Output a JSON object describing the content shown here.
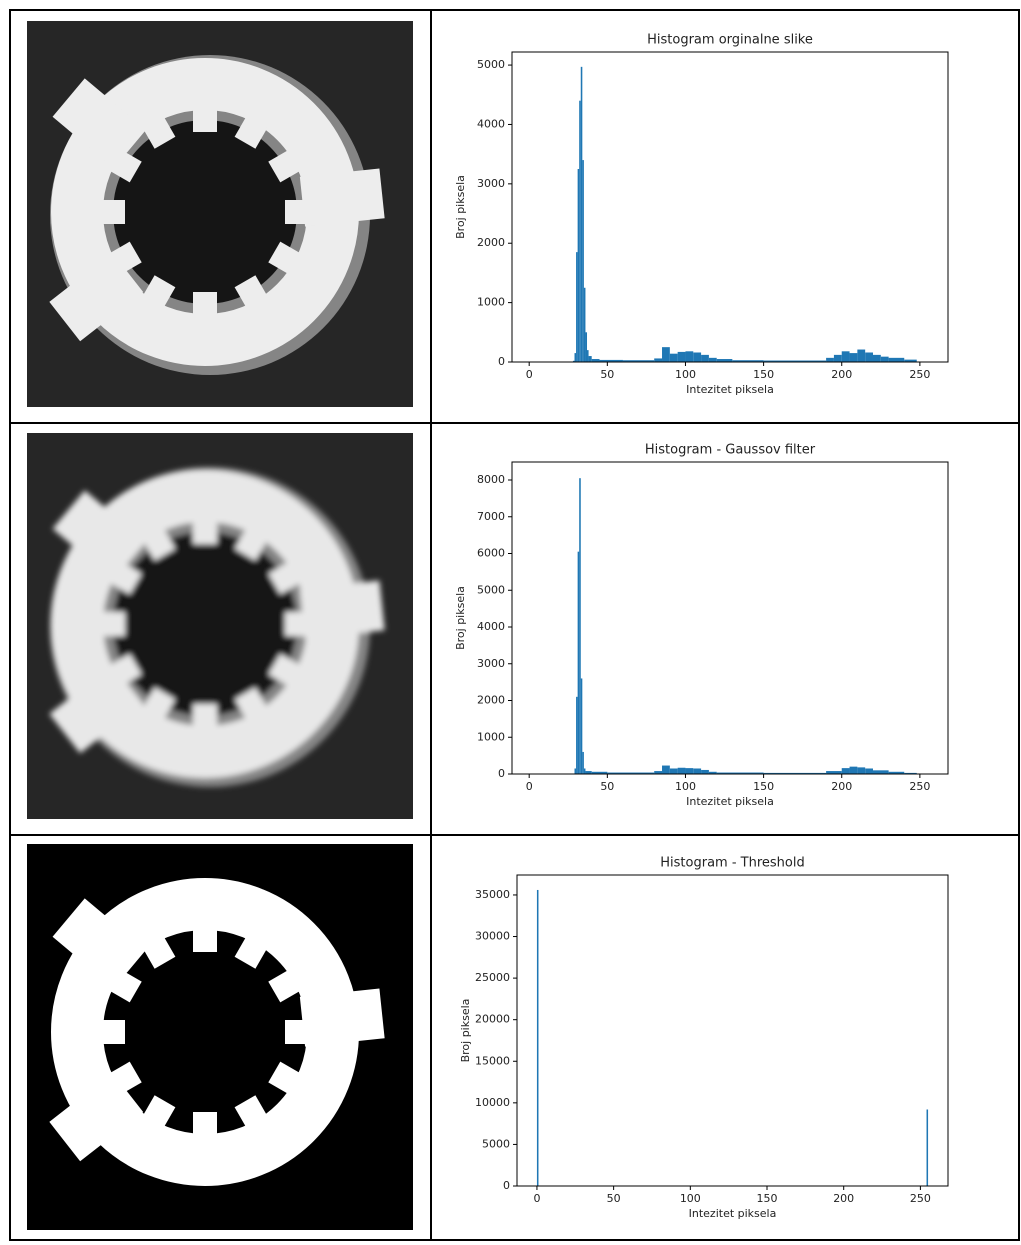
{
  "chart_data": [
    {
      "type": "histogram",
      "title": "Histogram orginalne slike",
      "xlabel": "Intezitet piksela",
      "ylabel": "Broj piksela",
      "color": "#1f77b4",
      "bins": [
        0,
        28,
        29,
        30,
        31,
        32,
        33,
        34,
        35,
        36,
        37,
        38,
        40,
        45,
        60,
        80,
        85,
        90,
        95,
        100,
        105,
        110,
        115,
        120,
        130,
        150,
        190,
        195,
        200,
        205,
        210,
        215,
        220,
        225,
        230,
        240,
        248
      ],
      "values": [
        0,
        20,
        150,
        1850,
        3250,
        4400,
        4970,
        3400,
        1250,
        500,
        200,
        100,
        50,
        35,
        30,
        60,
        250,
        140,
        170,
        180,
        160,
        120,
        70,
        50,
        30,
        25,
        70,
        120,
        180,
        150,
        210,
        160,
        120,
        90,
        70,
        40
      ],
      "xlim": [
        -11,
        268
      ],
      "xticks": [
        0,
        50,
        100,
        150,
        200,
        250
      ],
      "ylim": [
        0,
        5220
      ],
      "yticks": [
        0,
        1000,
        2000,
        3000,
        4000,
        5000
      ]
    },
    {
      "type": "histogram",
      "title": "Histogram - Gaussov filter",
      "xlabel": "Intezitet piksela",
      "ylabel": "Broj piksela",
      "color": "#1f77b4",
      "bins": [
        0,
        29,
        30,
        31,
        32,
        33,
        34,
        35,
        36,
        40,
        50,
        80,
        85,
        90,
        95,
        100,
        105,
        110,
        115,
        120,
        150,
        190,
        200,
        205,
        210,
        215,
        220,
        230,
        240,
        248
      ],
      "values": [
        0,
        150,
        2100,
        6050,
        8050,
        2600,
        600,
        150,
        80,
        60,
        40,
        80,
        230,
        150,
        170,
        160,
        150,
        110,
        60,
        40,
        30,
        80,
        160,
        200,
        180,
        150,
        100,
        60,
        30
      ],
      "xlim": [
        -11,
        268
      ],
      "xticks": [
        0,
        50,
        100,
        150,
        200,
        250
      ],
      "ylim": [
        0,
        8490
      ],
      "yticks": [
        0,
        1000,
        2000,
        3000,
        4000,
        5000,
        6000,
        7000,
        8000
      ]
    },
    {
      "type": "histogram",
      "title": "Histogram - Threshold",
      "xlabel": "Intezitet piksela",
      "ylabel": "Broj piksela",
      "color": "#1f77b4",
      "bins": [
        0,
        1,
        254,
        255
      ],
      "values": [
        35600,
        0,
        9200
      ],
      "xlim": [
        -13,
        268
      ],
      "xticks": [
        0,
        50,
        100,
        150,
        200,
        250
      ],
      "ylim": [
        0,
        37400
      ],
      "yticks": [
        0,
        5000,
        10000,
        15000,
        20000,
        25000,
        30000,
        35000
      ]
    }
  ]
}
